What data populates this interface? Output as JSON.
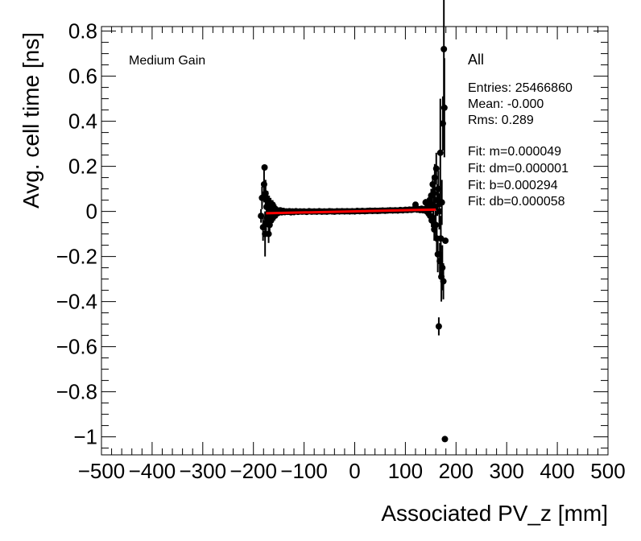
{
  "chart_data": {
    "type": "scatter",
    "xlabel": "Associated PV_z [mm]",
    "ylabel": "Avg. cell time [ns]",
    "xlim": [
      -500,
      500
    ],
    "ylim": [
      -1.08,
      0.82
    ],
    "x_ticks": [
      -500,
      -400,
      -300,
      -200,
      -100,
      0,
      100,
      200,
      300,
      400,
      500
    ],
    "x_tick_labels": [
      "−500",
      "−400",
      "−300",
      "−200",
      "−100",
      "0",
      "100",
      "200",
      "300",
      "400",
      "500"
    ],
    "y_ticks": [
      -1.0,
      -0.8,
      -0.6,
      -0.4,
      -0.2,
      0.0,
      0.2,
      0.4,
      0.6,
      0.8
    ],
    "y_tick_labels": [
      "−1",
      "−0.8",
      "−0.6",
      "−0.4",
      "−0.2",
      "0",
      "0.2",
      "0.4",
      "0.6",
      "0.8"
    ],
    "grid": false,
    "annotation_gain": "Medium Gain",
    "legend": {
      "title": "All",
      "placement": "top-right",
      "lines": [
        "Entries: 25466860",
        "Mean: -0.000",
        "Rms: 0.289",
        "",
        "Fit: m=0.000049",
        "Fit: dm=0.000001",
        "Fit: b=0.000294",
        "Fit: db=0.000058"
      ]
    },
    "series": [
      {
        "marker_color": "#000000",
        "points": [
          {
            "x": -185,
            "y": -0.02,
            "err": 0.03
          },
          {
            "x": -183,
            "y": 0.06,
            "err": 0.05
          },
          {
            "x": -181,
            "y": -0.07,
            "err": 0.06
          },
          {
            "x": -179,
            "y": 0.12,
            "err": 0.08
          },
          {
            "x": -178,
            "y": 0.195,
            "err": 0.01
          },
          {
            "x": -177,
            "y": -0.1,
            "err": 0.1
          },
          {
            "x": -176,
            "y": 0.08,
            "err": 0.06
          },
          {
            "x": -175,
            "y": -0.05,
            "err": 0.05
          },
          {
            "x": -174,
            "y": 0.02,
            "err": 0.05
          },
          {
            "x": -173,
            "y": -0.03,
            "err": 0.04
          },
          {
            "x": -172,
            "y": 0.05,
            "err": 0.04
          },
          {
            "x": -171,
            "y": -0.01,
            "err": 0.04
          },
          {
            "x": -170,
            "y": -0.1,
            "err": 0.04
          },
          {
            "x": -169,
            "y": 0.04,
            "err": 0.03
          },
          {
            "x": -168,
            "y": -0.06,
            "err": 0.03
          },
          {
            "x": -167,
            "y": 0.01,
            "err": 0.03
          },
          {
            "x": -166,
            "y": 0.03,
            "err": 0.03
          },
          {
            "x": -165,
            "y": -0.04,
            "err": 0.03
          },
          {
            "x": -164,
            "y": 0.02,
            "err": 0.03
          },
          {
            "x": -163,
            "y": -0.02,
            "err": 0.02
          },
          {
            "x": -162,
            "y": 0.03,
            "err": 0.02
          },
          {
            "x": -161,
            "y": -0.01,
            "err": 0.02
          },
          {
            "x": -160,
            "y": 0.0,
            "err": 0.02
          },
          {
            "x": -159,
            "y": 0.01,
            "err": 0.02
          },
          {
            "x": -158,
            "y": -0.02,
            "err": 0.02
          },
          {
            "x": -156,
            "y": 0.01,
            "err": 0.02
          },
          {
            "x": -154,
            "y": -0.01,
            "err": 0.02
          },
          {
            "x": -152,
            "y": 0.0,
            "err": 0.015
          },
          {
            "x": -150,
            "y": -0.005,
            "err": 0.015
          },
          {
            "x": -147,
            "y": 0.005,
            "err": 0.01
          },
          {
            "x": -144,
            "y": -0.004,
            "err": 0.01
          },
          {
            "x": -141,
            "y": 0.002,
            "err": 0.01
          },
          {
            "x": -138,
            "y": -0.003,
            "err": 0.01
          },
          {
            "x": -135,
            "y": 0.0,
            "err": 0.01
          },
          {
            "x": -132,
            "y": -0.002,
            "err": 0.008
          },
          {
            "x": -129,
            "y": 0.001,
            "err": 0.008
          },
          {
            "x": -126,
            "y": -0.004,
            "err": 0.008
          },
          {
            "x": -123,
            "y": 0.0,
            "err": 0.007
          },
          {
            "x": -120,
            "y": -0.003,
            "err": 0.007
          },
          {
            "x": -116,
            "y": 0.001,
            "err": 0.006
          },
          {
            "x": -112,
            "y": -0.002,
            "err": 0.006
          },
          {
            "x": -108,
            "y": 0.0,
            "err": 0.005
          },
          {
            "x": -104,
            "y": -0.001,
            "err": 0.005
          },
          {
            "x": -100,
            "y": 0.0,
            "err": 0.005
          },
          {
            "x": -95,
            "y": -0.002,
            "err": 0.004
          },
          {
            "x": -90,
            "y": 0.001,
            "err": 0.004
          },
          {
            "x": -85,
            "y": -0.001,
            "err": 0.004
          },
          {
            "x": -80,
            "y": 0.0,
            "err": 0.004
          },
          {
            "x": -75,
            "y": -0.001,
            "err": 0.003
          },
          {
            "x": -70,
            "y": 0.001,
            "err": 0.003
          },
          {
            "x": -65,
            "y": -0.001,
            "err": 0.003
          },
          {
            "x": -60,
            "y": 0.0,
            "err": 0.003
          },
          {
            "x": -55,
            "y": -0.001,
            "err": 0.003
          },
          {
            "x": -50,
            "y": 0.001,
            "err": 0.003
          },
          {
            "x": -45,
            "y": 0.0,
            "err": 0.003
          },
          {
            "x": -40,
            "y": -0.001,
            "err": 0.003
          },
          {
            "x": -35,
            "y": 0.001,
            "err": 0.003
          },
          {
            "x": -30,
            "y": 0.0,
            "err": 0.003
          },
          {
            "x": -25,
            "y": 0.001,
            "err": 0.003
          },
          {
            "x": -20,
            "y": 0.0,
            "err": 0.003
          },
          {
            "x": -15,
            "y": 0.001,
            "err": 0.003
          },
          {
            "x": -10,
            "y": 0.0,
            "err": 0.003
          },
          {
            "x": -5,
            "y": 0.001,
            "err": 0.003
          },
          {
            "x": 0,
            "y": 0.0,
            "err": 0.003
          },
          {
            "x": 5,
            "y": 0.002,
            "err": 0.003
          },
          {
            "x": 10,
            "y": 0.001,
            "err": 0.003
          },
          {
            "x": 15,
            "y": 0.002,
            "err": 0.003
          },
          {
            "x": 20,
            "y": 0.001,
            "err": 0.003
          },
          {
            "x": 25,
            "y": 0.002,
            "err": 0.003
          },
          {
            "x": 30,
            "y": 0.003,
            "err": 0.003
          },
          {
            "x": 35,
            "y": 0.002,
            "err": 0.003
          },
          {
            "x": 40,
            "y": 0.003,
            "err": 0.003
          },
          {
            "x": 45,
            "y": 0.002,
            "err": 0.003
          },
          {
            "x": 50,
            "y": 0.003,
            "err": 0.003
          },
          {
            "x": 55,
            "y": 0.004,
            "err": 0.003
          },
          {
            "x": 60,
            "y": 0.003,
            "err": 0.003
          },
          {
            "x": 65,
            "y": 0.004,
            "err": 0.004
          },
          {
            "x": 70,
            "y": 0.005,
            "err": 0.004
          },
          {
            "x": 75,
            "y": 0.004,
            "err": 0.004
          },
          {
            "x": 80,
            "y": 0.005,
            "err": 0.004
          },
          {
            "x": 85,
            "y": 0.004,
            "err": 0.004
          },
          {
            "x": 90,
            "y": 0.006,
            "err": 0.005
          },
          {
            "x": 95,
            "y": 0.005,
            "err": 0.005
          },
          {
            "x": 100,
            "y": 0.007,
            "err": 0.005
          },
          {
            "x": 104,
            "y": 0.006,
            "err": 0.006
          },
          {
            "x": 108,
            "y": 0.008,
            "err": 0.006
          },
          {
            "x": 112,
            "y": 0.007,
            "err": 0.007
          },
          {
            "x": 116,
            "y": 0.009,
            "err": 0.007
          },
          {
            "x": 120,
            "y": 0.03,
            "err": 0.01
          },
          {
            "x": 123,
            "y": 0.008,
            "err": 0.008
          },
          {
            "x": 126,
            "y": 0.01,
            "err": 0.009
          },
          {
            "x": 129,
            "y": 0.006,
            "err": 0.01
          },
          {
            "x": 132,
            "y": 0.012,
            "err": 0.01
          },
          {
            "x": 135,
            "y": 0.005,
            "err": 0.012
          },
          {
            "x": 138,
            "y": 0.01,
            "err": 0.012
          },
          {
            "x": 140,
            "y": 0.04,
            "err": 0.015
          },
          {
            "x": 142,
            "y": 0.0,
            "err": 0.015
          },
          {
            "x": 144,
            "y": 0.03,
            "err": 0.02
          },
          {
            "x": 146,
            "y": -0.01,
            "err": 0.02
          },
          {
            "x": 147,
            "y": 0.02,
            "err": 0.02
          },
          {
            "x": 148,
            "y": 0.05,
            "err": 0.025
          },
          {
            "x": 149,
            "y": -0.02,
            "err": 0.025
          },
          {
            "x": 150,
            "y": 0.01,
            "err": 0.03
          },
          {
            "x": 151,
            "y": 0.07,
            "err": 0.03
          },
          {
            "x": 152,
            "y": -0.04,
            "err": 0.03
          },
          {
            "x": 153,
            "y": 0.03,
            "err": 0.03
          },
          {
            "x": 154,
            "y": 0.12,
            "err": 0.04
          },
          {
            "x": 155,
            "y": -0.03,
            "err": 0.04
          },
          {
            "x": 156,
            "y": 0.08,
            "err": 0.05
          },
          {
            "x": 157,
            "y": -0.08,
            "err": 0.05
          },
          {
            "x": 158,
            "y": 0.15,
            "err": 0.06
          },
          {
            "x": 159,
            "y": 0.02,
            "err": 0.05
          },
          {
            "x": 160,
            "y": -0.06,
            "err": 0.06
          },
          {
            "x": 161,
            "y": 0.19,
            "err": 0.07
          },
          {
            "x": 162,
            "y": -0.12,
            "err": 0.07
          },
          {
            "x": 163,
            "y": 0.05,
            "err": 0.07
          },
          {
            "x": 164,
            "y": -0.19,
            "err": 0.08
          },
          {
            "x": 165,
            "y": 0.1,
            "err": 0.08
          },
          {
            "x": 166,
            "y": -0.51,
            "err": 0.04
          },
          {
            "x": 167,
            "y": 0.0,
            "err": 0.08
          },
          {
            "x": 168,
            "y": -0.22,
            "err": 0.08
          },
          {
            "x": 169,
            "y": 0.26,
            "err": 0.24
          },
          {
            "x": 170,
            "y": -0.12,
            "err": 0.1
          },
          {
            "x": 171,
            "y": -0.29,
            "err": 0.11
          },
          {
            "x": 172,
            "y": 0.04,
            "err": 0.1
          },
          {
            "x": 173,
            "y": -0.25,
            "err": 0.1
          },
          {
            "x": 174,
            "y": 0.39,
            "err": 0.12
          },
          {
            "x": 175,
            "y": -0.31,
            "err": 0.08
          },
          {
            "x": 176,
            "y": 0.72,
            "err": 0.28
          },
          {
            "x": 177,
            "y": 0.46,
            "err": 0.22
          },
          {
            "x": 178,
            "y": -1.01,
            "err": 0.0
          },
          {
            "x": 179,
            "y": -0.13,
            "err": 0.0
          }
        ]
      }
    ],
    "fit_line": {
      "color": "#ff0000",
      "slope": 4.9e-05,
      "intercept": 0.000294,
      "x_range": [
        -175,
        160
      ]
    }
  }
}
